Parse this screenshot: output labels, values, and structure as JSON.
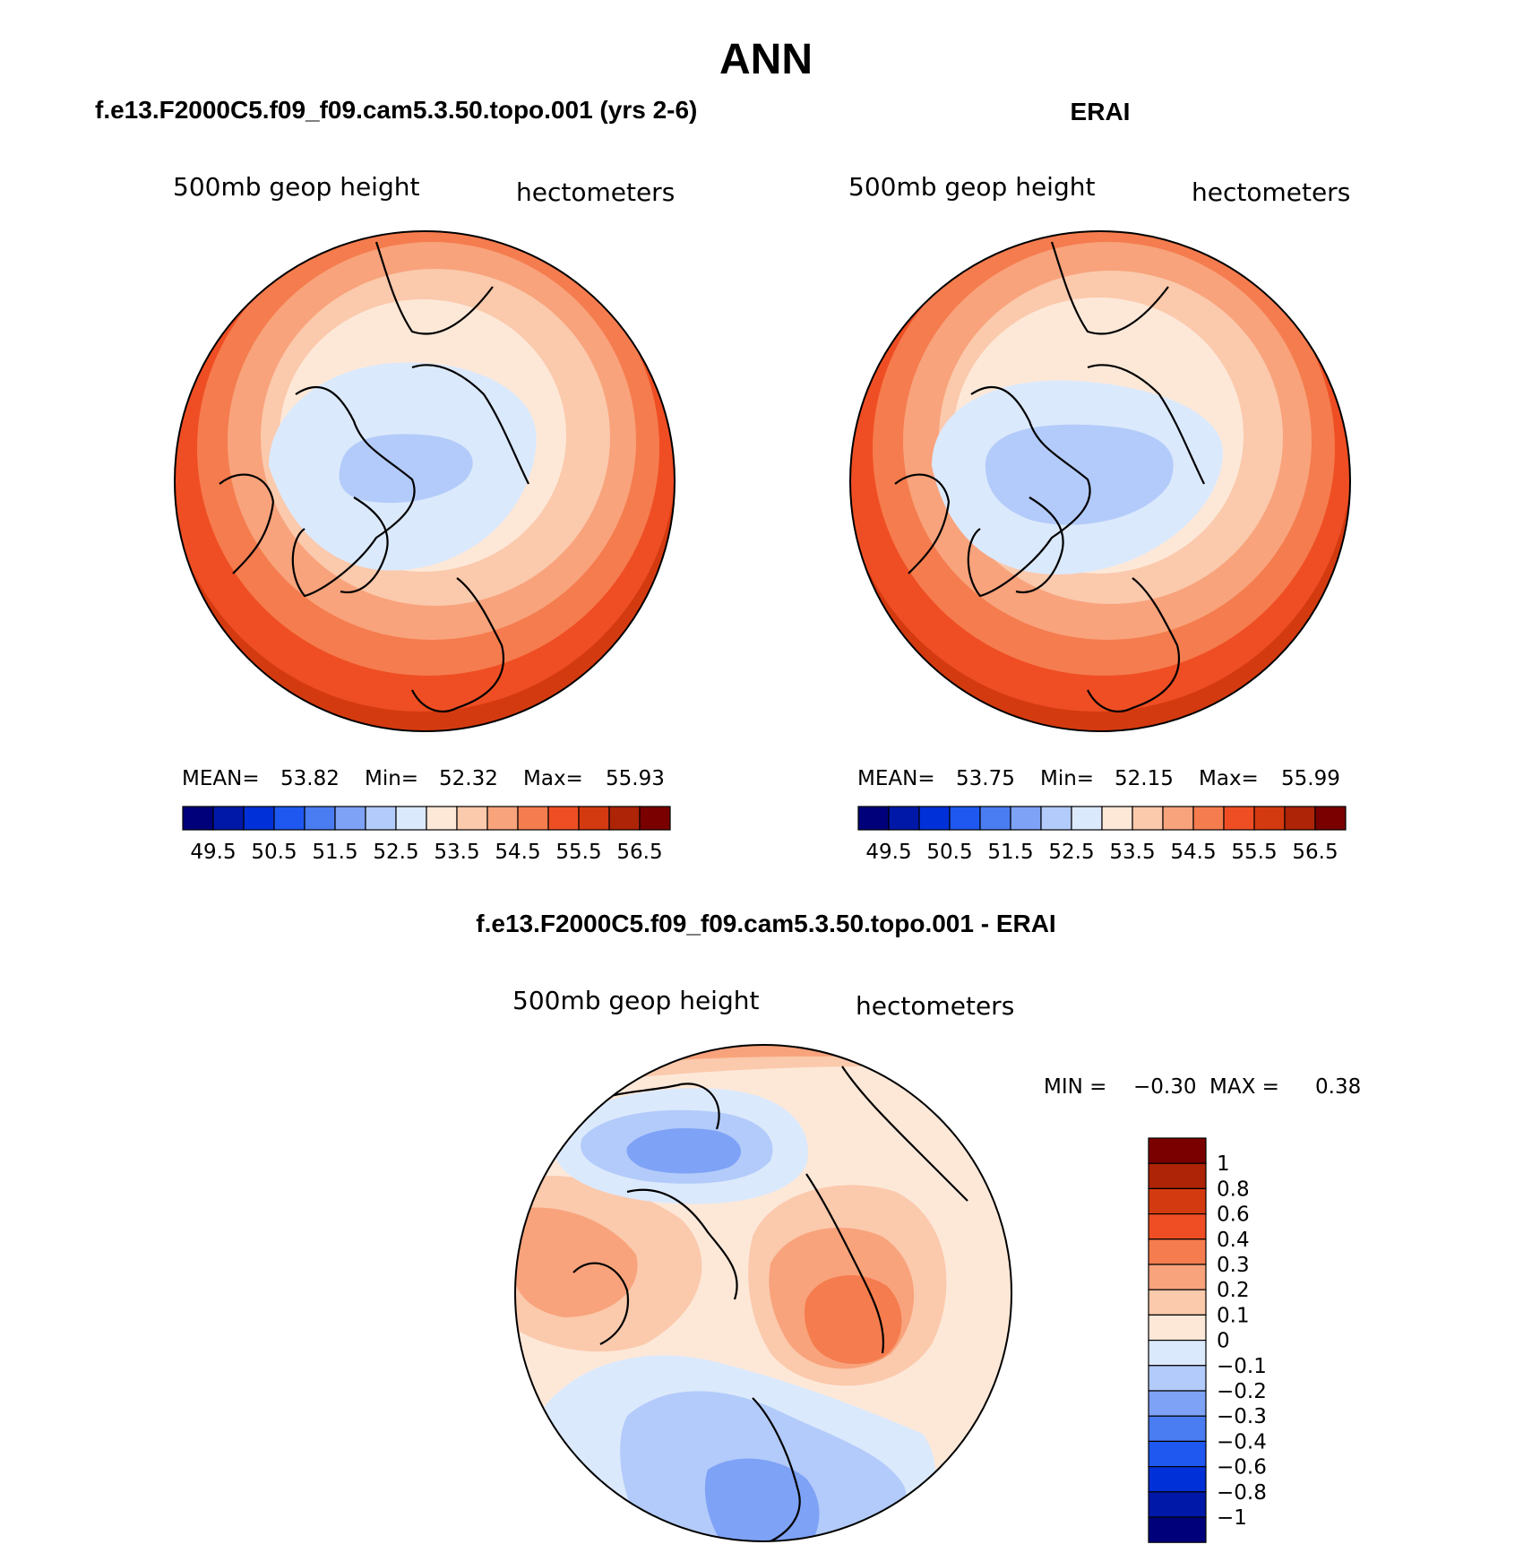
{
  "figure": {
    "title": "ANN"
  },
  "chart_data": [
    {
      "type": "heatmap",
      "title": "f.e13.F2000C5.f09_f09.cam5.3.50.topo.001 (yrs 2-6)",
      "left_label": "500mb geop height",
      "right_label": "hectometers",
      "stats": {
        "mean_label": "MEAN=",
        "mean": "53.82",
        "min_label": "Min=",
        "min": "52.32",
        "max_label": "Max=",
        "max": "55.93"
      },
      "colorbar": {
        "orientation": "horizontal",
        "colors": [
          "#00007a",
          "#0018a8",
          "#0030d8",
          "#1e58f0",
          "#4a7cf2",
          "#7ea2f6",
          "#b3cbfa",
          "#dbe9fc",
          "#fde8d8",
          "#fbc9ac",
          "#f8a37c",
          "#f57c4e",
          "#ef4e24",
          "#d43a10",
          "#ad2407",
          "#7a0000"
        ],
        "tick_labels": [
          "49.5",
          "50.5",
          "51.5",
          "52.5",
          "53.5",
          "54.5",
          "55.5",
          "56.5"
        ]
      }
    },
    {
      "type": "heatmap",
      "title": "ERAI",
      "left_label": "500mb geop height",
      "right_label": "hectometers",
      "stats": {
        "mean_label": "MEAN=",
        "mean": "53.75",
        "min_label": "Min=",
        "min": "52.15",
        "max_label": "Max=",
        "max": "55.99"
      },
      "colorbar": {
        "orientation": "horizontal",
        "colors": [
          "#00007a",
          "#0018a8",
          "#0030d8",
          "#1e58f0",
          "#4a7cf2",
          "#7ea2f6",
          "#b3cbfa",
          "#dbe9fc",
          "#fde8d8",
          "#fbc9ac",
          "#f8a37c",
          "#f57c4e",
          "#ef4e24",
          "#d43a10",
          "#ad2407",
          "#7a0000"
        ],
        "tick_labels": [
          "49.5",
          "50.5",
          "51.5",
          "52.5",
          "53.5",
          "54.5",
          "55.5",
          "56.5"
        ]
      }
    },
    {
      "type": "heatmap",
      "title": "f.e13.F2000C5.f09_f09.cam5.3.50.topo.001 - ERAI",
      "left_label": "500mb geop height",
      "right_label": "hectometers",
      "stats": {
        "min_label": "MIN =",
        "min": "−0.30",
        "max_label": "MAX =",
        "max": "0.38"
      },
      "colorbar": {
        "orientation": "vertical",
        "colors_top_to_bottom": [
          "#7a0000",
          "#ad2407",
          "#d43a10",
          "#ef4e24",
          "#f57c4e",
          "#f8a37c",
          "#fbc9ac",
          "#fde8d8",
          "#dbe9fc",
          "#b3cbfa",
          "#7ea2f6",
          "#4a7cf2",
          "#1e58f0",
          "#0030d8",
          "#0018a8",
          "#00007a"
        ],
        "tick_labels": [
          "1",
          "0.8",
          "0.6",
          "0.4",
          "0.3",
          "0.2",
          "0.1",
          "0",
          "−0.1",
          "−0.2",
          "−0.3",
          "−0.4",
          "−0.6",
          "−0.8",
          "−1"
        ]
      }
    }
  ]
}
